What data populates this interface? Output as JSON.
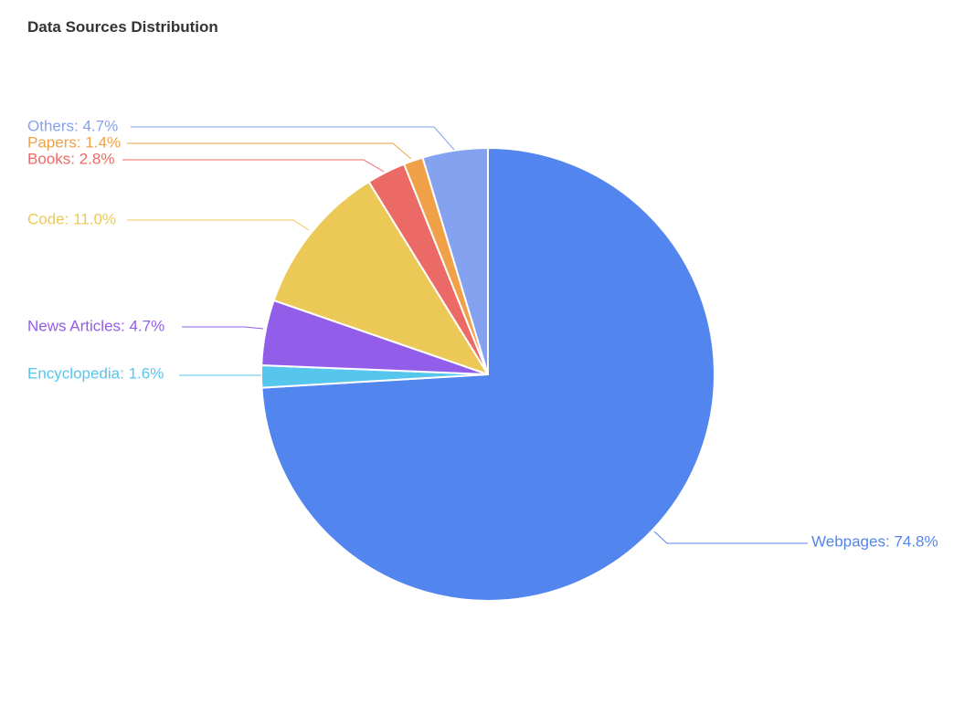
{
  "chart_data": {
    "type": "pie",
    "title": "Data Sources Distribution",
    "slices": [
      {
        "name": "Webpages",
        "value": 74.8,
        "label": "Webpages: 74.8%",
        "color": "#5385ee"
      },
      {
        "name": "Encyclopedia",
        "value": 1.6,
        "label": "Encyclopedia: 1.6%",
        "color": "#56c6ed"
      },
      {
        "name": "News Articles",
        "value": 4.7,
        "label": "News Articles: 4.7%",
        "color": "#925de9"
      },
      {
        "name": "Code",
        "value": 11.0,
        "label": "Code: 11.0%",
        "color": "#ecc957"
      },
      {
        "name": "Books",
        "value": 2.8,
        "label": "Books: 2.8%",
        "color": "#eb6a65"
      },
      {
        "name": "Papers",
        "value": 1.4,
        "label": "Papers: 1.4%",
        "color": "#f0a047"
      },
      {
        "name": "Others",
        "value": 4.7,
        "label": "Others: 4.7%",
        "color": "#84a2ef"
      }
    ]
  }
}
